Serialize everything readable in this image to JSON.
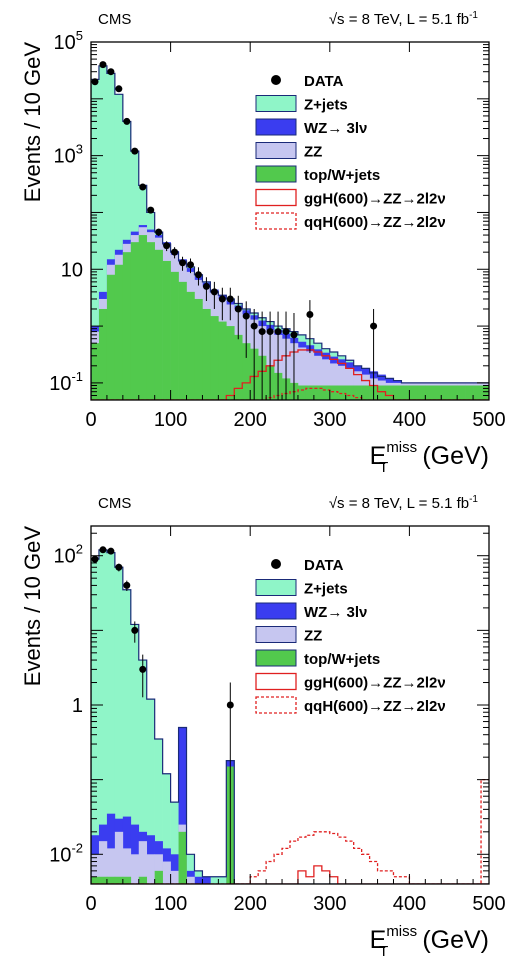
{
  "colors": {
    "zjets": "#8ff5c8",
    "wz": "#3a3df0",
    "zz": "#c6c6f0",
    "top": "#52c94d",
    "signal": "#e02020",
    "outline": "#1a2a78"
  },
  "chart_data": [
    {
      "type": "histogram",
      "cms_label": "CMS",
      "lumi_label": "√s = 8 TeV, L = 5.1 fb",
      "lumi_sup": "-1",
      "ylabel": "Events / 10 GeV",
      "xlabel_main": "E",
      "xlabel_sub": "T",
      "xlabel_sup": "miss",
      "xlabel_unit": "(GeV)",
      "xlim": [
        0,
        500
      ],
      "ylim": [
        0.05,
        100000
      ],
      "log_y": true,
      "x_ticks": [
        "0",
        "100",
        "200",
        "300",
        "400",
        "500"
      ],
      "y_ticks": [
        {
          "base": "10",
          "exp": "-1",
          "value": 0.1
        },
        {
          "base": "10",
          "exp": "",
          "value": 10
        },
        {
          "base": "10",
          "exp": "3",
          "value": 1000
        },
        {
          "base": "10",
          "exp": "5",
          "value": 100000
        }
      ],
      "legend": [
        {
          "label": "DATA",
          "style": "marker"
        },
        {
          "label": "Z+jets",
          "style": "zjets"
        },
        {
          "label": "WZ→ 3lν",
          "style": "wz"
        },
        {
          "label": "ZZ",
          "style": "zz"
        },
        {
          "label": "top/W+jets",
          "style": "top"
        },
        {
          "label": "ggH(600)→ZZ→2l2ν",
          "style": "solid-line"
        },
        {
          "label": "qqH(600)→ZZ→2l2ν",
          "style": "dashed-line"
        }
      ],
      "bin_width": 10,
      "stack": {
        "top": [
          0.5,
          2,
          8,
          12,
          20,
          30,
          40,
          30,
          22,
          14,
          9,
          6,
          4,
          3,
          2,
          1.5,
          1.2,
          1,
          0.7,
          0.5,
          0.4,
          0.3,
          0.2,
          0.15,
          0.12,
          0.1,
          0.09,
          0.09,
          0.09,
          0.09,
          0.09,
          0.09,
          0.09,
          0.09,
          0.09,
          0.09,
          0.09,
          0.09,
          0.09,
          0.09,
          0.09,
          0.09,
          0.09,
          0.09,
          0.09,
          0.09,
          0.09,
          0.09,
          0.09,
          0.09
        ],
        "zz": [
          0.8,
          3,
          12,
          18,
          28,
          40,
          55,
          45,
          36,
          26,
          18,
          13,
          9,
          6.5,
          5,
          3.8,
          3,
          2.4,
          2,
          1.6,
          1.3,
          1,
          0.85,
          0.7,
          0.6,
          0.5,
          0.42,
          0.36,
          0.3,
          0.26,
          0.22,
          0.2,
          0.18,
          0.16,
          0.14,
          0.12,
          0.11,
          0.1,
          0.1,
          0.1,
          0.1,
          0.1,
          0.1,
          0.1,
          0.1,
          0.1,
          0.1,
          0.1,
          0.1,
          0.1
        ],
        "wz": [
          1,
          4,
          15,
          22,
          33,
          46,
          60,
          50,
          40,
          30,
          21,
          15,
          10.5,
          7.5,
          5.8,
          4.4,
          3.5,
          2.8,
          2.3,
          1.9,
          1.55,
          1.25,
          1.05,
          0.86,
          0.74,
          0.62,
          0.53,
          0.46,
          0.39,
          0.34,
          0.29,
          0.26,
          0.23,
          0.2,
          0.18,
          0.16,
          0.14,
          0.12,
          0.11,
          0.1,
          0.1,
          0.1,
          0.1,
          0.1,
          0.1,
          0.1,
          0.1,
          0.1,
          0.1,
          0.1
        ],
        "total": [
          22000,
          38000,
          28000,
          12000,
          4000,
          1200,
          300,
          100,
          45,
          28,
          20,
          14,
          11,
          8,
          6,
          4,
          3.5,
          3,
          2.5,
          2,
          1.7,
          1.4,
          1.2,
          1,
          0.9,
          0.8,
          0.7,
          0.6,
          0.5,
          0.4,
          0.35,
          0.3,
          0.25,
          0.2,
          0.18,
          0.15,
          0.13,
          0.12,
          0.11,
          0.1,
          0.1,
          0.1,
          0.1,
          0.1,
          0.1,
          0.1,
          0.1,
          0.1,
          0.1,
          0.1
        ]
      },
      "ggH": [
        0.05,
        0.05,
        0.05,
        0.05,
        0.05,
        0.05,
        0.05,
        0.05,
        0.05,
        0.05,
        0.05,
        0.05,
        0.05,
        0.05,
        0.05,
        0.05,
        0.05,
        0.06,
        0.08,
        0.1,
        0.13,
        0.16,
        0.2,
        0.25,
        0.3,
        0.35,
        0.38,
        0.38,
        0.35,
        0.3,
        0.26,
        0.22,
        0.18,
        0.14,
        0.11,
        0.09,
        0.07,
        0.06,
        0.05,
        0.05,
        0.05,
        0.05,
        0.05,
        0.05,
        0.05,
        0.05,
        0.05,
        0.05,
        0.05,
        0.05
      ],
      "qqH": [
        0.05,
        0.05,
        0.05,
        0.05,
        0.05,
        0.05,
        0.05,
        0.05,
        0.05,
        0.05,
        0.05,
        0.05,
        0.05,
        0.05,
        0.05,
        0.05,
        0.05,
        0.05,
        0.05,
        0.05,
        0.05,
        0.05,
        0.055,
        0.06,
        0.065,
        0.07,
        0.075,
        0.08,
        0.08,
        0.075,
        0.07,
        0.065,
        0.06,
        0.055,
        0.05,
        0.05,
        0.05,
        0.05,
        0.05,
        0.05,
        0.05,
        0.05,
        0.05,
        0.05,
        0.05,
        0.05,
        0.05,
        0.05,
        0.05,
        0.05
      ],
      "data": [
        {
          "x": 5,
          "y": 20000
        },
        {
          "x": 15,
          "y": 40000
        },
        {
          "x": 25,
          "y": 30000
        },
        {
          "x": 35,
          "y": 15000
        },
        {
          "x": 45,
          "y": 4000
        },
        {
          "x": 55,
          "y": 1200
        },
        {
          "x": 65,
          "y": 280
        },
        {
          "x": 75,
          "y": 110
        },
        {
          "x": 85,
          "y": 45
        },
        {
          "x": 95,
          "y": 26
        },
        {
          "x": 105,
          "y": 20
        },
        {
          "x": 115,
          "y": 13
        },
        {
          "x": 125,
          "y": 12
        },
        {
          "x": 135,
          "y": 8
        },
        {
          "x": 145,
          "y": 5
        },
        {
          "x": 155,
          "y": 4
        },
        {
          "x": 165,
          "y": 3
        },
        {
          "x": 175,
          "y": 3
        },
        {
          "x": 185,
          "y": 2
        },
        {
          "x": 195,
          "y": 1.5
        },
        {
          "x": 205,
          "y": 1
        },
        {
          "x": 215,
          "y": 0.8
        },
        {
          "x": 225,
          "y": 0.8
        },
        {
          "x": 235,
          "y": 0.8
        },
        {
          "x": 245,
          "y": 0.8
        },
        {
          "x": 255,
          "y": 0.7
        },
        {
          "x": 275,
          "y": 1.6
        },
        {
          "x": 355,
          "y": 1
        }
      ]
    },
    {
      "type": "histogram",
      "cms_label": "CMS",
      "lumi_label": "√s = 8 TeV, L = 5.1 fb",
      "lumi_sup": "-1",
      "ylabel": "Events / 10 GeV",
      "xlabel_main": "E",
      "xlabel_sub": "T",
      "xlabel_sup": "miss",
      "xlabel_unit": "(GeV)",
      "xlim": [
        0,
        500
      ],
      "ylim": [
        0.004,
        250
      ],
      "log_y": true,
      "x_ticks": [
        "0",
        "100",
        "200",
        "300",
        "400",
        "500"
      ],
      "y_ticks": [
        {
          "base": "10",
          "exp": "-2",
          "value": 0.01
        },
        {
          "base": "1",
          "exp": "",
          "value": 1
        },
        {
          "base": "10",
          "exp": "2",
          "value": 100
        }
      ],
      "legend": [
        {
          "label": "DATA",
          "style": "marker"
        },
        {
          "label": "Z+jets",
          "style": "zjets"
        },
        {
          "label": "WZ→ 3lν",
          "style": "wz"
        },
        {
          "label": "ZZ",
          "style": "zz"
        },
        {
          "label": "top/W+jets",
          "style": "top"
        },
        {
          "label": "ggH(600)→ZZ→2l2ν",
          "style": "solid-line"
        },
        {
          "label": "qqH(600)→ZZ→2l2ν",
          "style": "dashed-line"
        }
      ],
      "bin_width": 10,
      "stack": {
        "top": [
          0.005,
          0.005,
          0.005,
          0.005,
          0.005,
          0.004,
          0.005,
          0.004,
          0.006,
          0.004,
          0.004,
          0.02,
          0.004,
          0.004,
          0.004,
          0.004,
          0.004,
          0.15,
          0.004,
          0.004,
          0.004,
          0.004,
          0.004,
          0.004,
          0.004,
          0.004,
          0.004,
          0.004,
          0.004,
          0.004,
          0.004,
          0.004,
          0.004,
          0.004,
          0.004,
          0.004,
          0.004,
          0.004,
          0.004,
          0.004,
          0.004,
          0.004,
          0.004,
          0.004,
          0.004,
          0.004,
          0.004,
          0.004,
          0.004,
          0.004
        ],
        "zz": [
          0.01,
          0.015,
          0.012,
          0.02,
          0.012,
          0.01,
          0.015,
          0.01,
          0.01,
          0.008,
          0.006,
          0.025,
          0.005,
          0.004,
          0.004,
          0.004,
          0.004,
          0.15,
          0.004,
          0.004,
          0.004,
          0.004,
          0.004,
          0.004,
          0.004,
          0.004,
          0.004,
          0.004,
          0.004,
          0.004,
          0.004,
          0.004,
          0.004,
          0.004,
          0.004,
          0.004,
          0.004,
          0.004,
          0.004,
          0.004,
          0.004,
          0.004,
          0.004,
          0.004,
          0.004,
          0.004,
          0.004,
          0.004,
          0.004,
          0.004
        ],
        "wz": [
          0.018,
          0.025,
          0.035,
          0.03,
          0.032,
          0.025,
          0.02,
          0.018,
          0.015,
          0.012,
          0.01,
          0.5,
          0.006,
          0.005,
          0.005,
          0.004,
          0.004,
          0.18,
          0.004,
          0.004,
          0.004,
          0.004,
          0.004,
          0.004,
          0.004,
          0.004,
          0.004,
          0.004,
          0.004,
          0.004,
          0.004,
          0.004,
          0.004,
          0.004,
          0.004,
          0.004,
          0.004,
          0.004,
          0.004,
          0.004,
          0.004,
          0.004,
          0.004,
          0.004,
          0.004,
          0.004,
          0.004,
          0.004,
          0.004,
          0.004
        ],
        "total": [
          90,
          120,
          110,
          70,
          35,
          12,
          4,
          1.2,
          0.35,
          0.12,
          0.05,
          0.5,
          0.01,
          0.006,
          0.005,
          0.005,
          0.005,
          0.18,
          0.004,
          0.004,
          0.004,
          0.004,
          0.004,
          0.004,
          0.004,
          0.004,
          0.004,
          0.004,
          0.004,
          0.004,
          0.004,
          0.004,
          0.004,
          0.004,
          0.004,
          0.004,
          0.004,
          0.004,
          0.004,
          0.004,
          0.004,
          0.004,
          0.004,
          0.004,
          0.004,
          0.004,
          0.004,
          0.004,
          0.004,
          0.004
        ]
      },
      "ggH": [
        0.004,
        0.004,
        0.004,
        0.004,
        0.004,
        0.004,
        0.004,
        0.004,
        0.004,
        0.004,
        0.004,
        0.004,
        0.004,
        0.004,
        0.004,
        0.004,
        0.004,
        0.004,
        0.004,
        0.004,
        0.004,
        0.004,
        0.004,
        0.004,
        0.004,
        0.004,
        0.006,
        0.005,
        0.007,
        0.006,
        0.005,
        0.004,
        0.004,
        0.004,
        0.004,
        0.004,
        0.004,
        0.004,
        0.004,
        0.004,
        0.004,
        0.004,
        0.004,
        0.004,
        0.004,
        0.004,
        0.004,
        0.004,
        0.004,
        0.004
      ],
      "qqH": [
        0.004,
        0.004,
        0.004,
        0.004,
        0.004,
        0.004,
        0.004,
        0.004,
        0.004,
        0.004,
        0.004,
        0.004,
        0.004,
        0.004,
        0.004,
        0.004,
        0.004,
        0.004,
        0.004,
        0.004,
        0.005,
        0.006,
        0.008,
        0.01,
        0.012,
        0.015,
        0.017,
        0.018,
        0.02,
        0.02,
        0.019,
        0.017,
        0.015,
        0.012,
        0.01,
        0.008,
        0.006,
        0.006,
        0.005,
        0.005,
        0.004,
        0.004,
        0.004,
        0.004,
        0.004,
        0.004,
        0.004,
        0.004,
        0.004,
        0.1
      ],
      "data": [
        {
          "x": 5,
          "y": 90
        },
        {
          "x": 15,
          "y": 120
        },
        {
          "x": 25,
          "y": 115
        },
        {
          "x": 35,
          "y": 70
        },
        {
          "x": 45,
          "y": 40
        },
        {
          "x": 55,
          "y": 10
        },
        {
          "x": 65,
          "y": 3
        },
        {
          "x": 175,
          "y": 1
        }
      ]
    }
  ]
}
